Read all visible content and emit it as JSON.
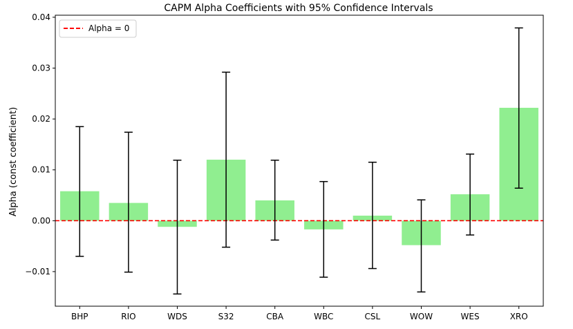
{
  "chart_data": {
    "type": "bar",
    "title": "CAPM Alpha Coefficients with 95% Confidence Intervals",
    "xlabel": "",
    "ylabel": "Alpha (const coefficient)",
    "categories": [
      "BHP",
      "RIO",
      "WDS",
      "S32",
      "CBA",
      "WBC",
      "CSL",
      "WOW",
      "WES",
      "XRO"
    ],
    "values": [
      0.0058,
      0.0035,
      -0.0012,
      0.012,
      0.004,
      -0.0017,
      0.001,
      -0.0048,
      0.0052,
      0.0222
    ],
    "ci_lower": [
      -0.007,
      -0.0101,
      -0.0144,
      -0.0052,
      -0.0038,
      -0.0111,
      -0.0094,
      -0.014,
      -0.0028,
      0.0064
    ],
    "ci_upper": [
      0.0185,
      0.0174,
      0.0119,
      0.0292,
      0.0119,
      0.0077,
      0.0115,
      0.0041,
      0.0131,
      0.0379
    ],
    "ylim": [
      -0.0168,
      0.0404
    ],
    "yticks": [
      -0.01,
      0.0,
      0.01,
      0.02,
      0.03,
      0.04
    ],
    "ytick_labels": [
      "−0.01",
      "0.00",
      "0.01",
      "0.02",
      "0.03",
      "0.04"
    ],
    "reference_line": {
      "y": 0,
      "label": "Alpha = 0",
      "color": "#ff0000",
      "style": "dashed"
    },
    "bar_color": "#90ee90",
    "errorbar_color": "#000000",
    "grid": false,
    "legend": {
      "position": "top-left",
      "entries": [
        "Alpha = 0"
      ]
    }
  }
}
